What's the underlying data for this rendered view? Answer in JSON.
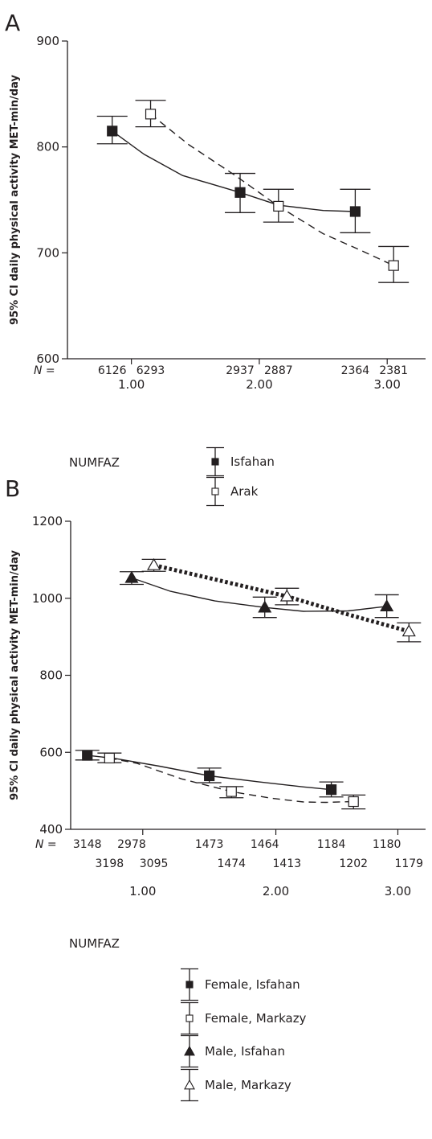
{
  "chart_data": [
    {
      "type": "line",
      "panel_label": "A",
      "ylabel": "95% CI daily physical activity MET-min/day",
      "ylim": [
        600,
        900
      ],
      "yticks": [
        600,
        700,
        800,
        900
      ],
      "x_category_labels": [
        "1.00",
        "2.00",
        "3.00"
      ],
      "n_prefix": "N =",
      "n_labels": [
        {
          "x": 0.85,
          "text": "6126"
        },
        {
          "x": 1.15,
          "text": "6293"
        },
        {
          "x": 1.85,
          "text": "2937"
        },
        {
          "x": 2.15,
          "text": "2887"
        },
        {
          "x": 2.75,
          "text": "2364"
        },
        {
          "x": 3.05,
          "text": "2381"
        }
      ],
      "legend_title": "NUMFAZ",
      "series": [
        {
          "name": "Isfahan",
          "marker": "square-filled",
          "line": "solid",
          "x": [
            0.85,
            1.85,
            2.75
          ],
          "values": [
            815,
            757,
            739
          ],
          "ci_low": [
            803,
            738,
            719
          ],
          "ci_high": [
            829,
            775,
            760
          ],
          "curve": [
            [
              0.85,
              815
            ],
            [
              1.1,
              793
            ],
            [
              1.4,
              773
            ],
            [
              1.85,
              757
            ],
            [
              2.15,
              745
            ],
            [
              2.5,
              740
            ],
            [
              2.75,
              739
            ]
          ]
        },
        {
          "name": "Arak",
          "marker": "square-open",
          "line": "dashed",
          "x": [
            1.15,
            2.15,
            3.05
          ],
          "values": [
            831,
            744,
            688
          ],
          "ci_low": [
            819,
            729,
            672
          ],
          "ci_high": [
            844,
            760,
            706
          ],
          "curve": [
            [
              1.15,
              831
            ],
            [
              1.45,
              802
            ],
            [
              1.8,
              774
            ],
            [
              2.15,
              744
            ],
            [
              2.5,
              718
            ],
            [
              2.8,
              702
            ],
            [
              3.05,
              688
            ]
          ]
        }
      ]
    },
    {
      "type": "line",
      "panel_label": "B",
      "ylabel": "95% CI daily physical activity MET-min/day",
      "ylim": [
        400,
        1200
      ],
      "yticks": [
        400,
        600,
        800,
        1000,
        1200
      ],
      "x_category_labels": [
        "1.00",
        "2.00",
        "3.00"
      ],
      "n_prefix": "N =",
      "n_labels": [
        {
          "x": 0.85,
          "row": 1,
          "text": "3148"
        },
        {
          "x": 1.25,
          "row": 1,
          "text": "2978"
        },
        {
          "x": 1.95,
          "row": 1,
          "text": "1473"
        },
        {
          "x": 2.45,
          "row": 1,
          "text": "1464"
        },
        {
          "x": 3.05,
          "row": 1,
          "text": "1184"
        },
        {
          "x": 3.55,
          "row": 1,
          "text": "1180"
        },
        {
          "x": 1.05,
          "row": 2,
          "text": "3198"
        },
        {
          "x": 1.45,
          "row": 2,
          "text": "3095"
        },
        {
          "x": 2.15,
          "row": 2,
          "text": "1474"
        },
        {
          "x": 2.65,
          "row": 2,
          "text": "1413"
        },
        {
          "x": 3.25,
          "row": 2,
          "text": "1202"
        },
        {
          "x": 3.75,
          "row": 2,
          "text": "1179"
        }
      ],
      "legend_title": "NUMFAZ",
      "series": [
        {
          "name": "Female, Isfahan",
          "marker": "square-filled",
          "line": "solid",
          "x": [
            0.85,
            1.95,
            3.05
          ],
          "values": [
            592,
            539,
            503
          ],
          "ci_low": [
            580,
            521,
            484
          ],
          "ci_high": [
            605,
            559,
            523
          ],
          "curve": [
            [
              0.85,
              592
            ],
            [
              1.1,
              584
            ],
            [
              1.5,
              564
            ],
            [
              1.95,
              539
            ],
            [
              2.4,
              523
            ],
            [
              2.8,
              510
            ],
            [
              3.05,
              503
            ]
          ]
        },
        {
          "name": "Female, Markazy",
          "marker": "square-open",
          "line": "dashed",
          "x": [
            1.05,
            2.15,
            3.25
          ],
          "values": [
            585,
            498,
            472
          ],
          "ci_low": [
            573,
            482,
            453
          ],
          "ci_high": [
            598,
            511,
            489
          ],
          "curve": [
            [
              1.05,
              585
            ],
            [
              1.3,
              571
            ],
            [
              1.7,
              531
            ],
            [
              2.15,
              498
            ],
            [
              2.5,
              481
            ],
            [
              2.8,
              471
            ],
            [
              3.0,
              470
            ],
            [
              3.25,
              472
            ]
          ]
        },
        {
          "name": "Male, Isfahan",
          "marker": "triangle-filled",
          "line": "solid",
          "x": [
            1.25,
            2.45,
            3.55
          ],
          "values": [
            1053,
            976,
            979
          ],
          "ci_low": [
            1036,
            950,
            950
          ],
          "ci_high": [
            1069,
            1003,
            1009
          ],
          "curve": [
            [
              1.25,
              1053
            ],
            [
              1.6,
              1018
            ],
            [
              2.0,
              993
            ],
            [
              2.45,
              976
            ],
            [
              2.8,
              966
            ],
            [
              3.2,
              967
            ],
            [
              3.55,
              979
            ]
          ]
        },
        {
          "name": "Male, Markazy",
          "marker": "triangle-open",
          "line": "dotted",
          "x": [
            1.45,
            2.65,
            3.75
          ],
          "values": [
            1086,
            1005,
            914
          ],
          "ci_low": [
            1070,
            983,
            887
          ],
          "ci_high": [
            1101,
            1026,
            936
          ],
          "curve": [
            [
              1.45,
              1086
            ],
            [
              2.0,
              1049
            ],
            [
              2.65,
              1005
            ],
            [
              3.2,
              958
            ],
            [
              3.75,
              914
            ]
          ]
        }
      ]
    }
  ]
}
